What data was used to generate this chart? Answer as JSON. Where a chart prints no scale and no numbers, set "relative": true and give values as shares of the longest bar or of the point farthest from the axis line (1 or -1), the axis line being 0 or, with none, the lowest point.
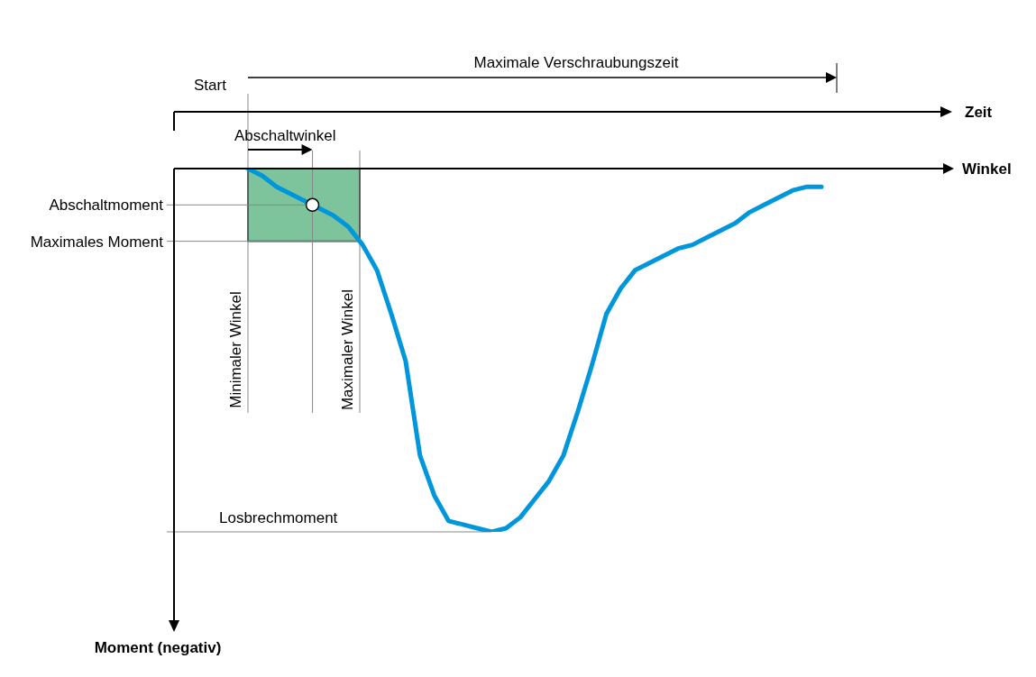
{
  "chart_data": {
    "type": "line",
    "relative": true,
    "annotations": [
      "Start",
      "Maximale Verschraubungszeit",
      "Minimaler Winkel",
      "Abschaltwinkel",
      "Maximaler Winkel",
      "Zeit",
      "Winkel",
      "Moment (negativ)"
    ],
    "categories": [
      null,
      null,
      null,
      null,
      null,
      null,
      null,
      null,
      null,
      null,
      null,
      null,
      null,
      null,
      null,
      null,
      null,
      null,
      null,
      null,
      null,
      null,
      null,
      null,
      null,
      null,
      null,
      null,
      null,
      null,
      null,
      null,
      null,
      null,
      null,
      null,
      null,
      null,
      null,
      null,
      null
    ],
    "series": [
      {
        "color": "#0096dc",
        "values": [
          0,
          -0.02,
          -0.05,
          -0.07,
          -0.09,
          -0.11,
          -0.13,
          -0.16,
          -0.21,
          -0.28,
          -0.4,
          -0.53,
          -0.79,
          -0.9,
          -0.97,
          -0.98,
          -0.99,
          -1.0,
          -0.99,
          -0.96,
          -0.91,
          -0.86,
          -0.79,
          -0.67,
          -0.54,
          -0.4,
          -0.33,
          -0.28,
          -0.26,
          -0.24,
          -0.22,
          -0.21,
          -0.19,
          -0.17,
          -0.15,
          -0.12,
          -0.1,
          -0.08,
          -0.06,
          -0.05,
          -0.05
        ]
      }
    ],
    "ref_lines": [
      {
        "axis": "y",
        "value": -0.1,
        "label": "Abschaltmoment"
      },
      {
        "axis": "y",
        "value": -0.2,
        "label": "Maximales Moment"
      },
      {
        "axis": "y",
        "value": -1.0,
        "label": "Losbrechmoment"
      }
    ],
    "bands": [
      {
        "axis": "y",
        "from": -0.2,
        "to": 0,
        "color": "#7dc49c"
      }
    ]
  }
}
